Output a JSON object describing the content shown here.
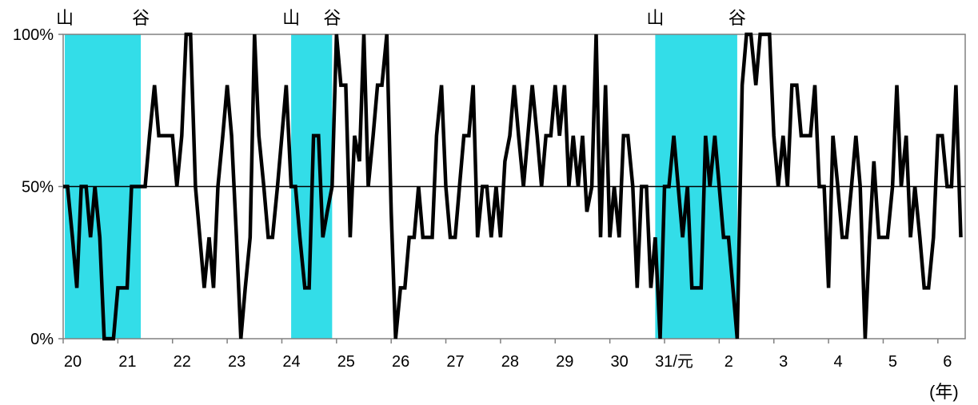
{
  "chart_data": {
    "type": "line",
    "title": "",
    "xlabel": "",
    "ylabel": "",
    "x_unit_label": "(年)",
    "ylim": [
      0,
      100
    ],
    "y_ticks": [
      "0%",
      "50%",
      "100%"
    ],
    "x_ticks": [
      "20",
      "21",
      "22",
      "23",
      "24",
      "25",
      "26",
      "27",
      "28",
      "29",
      "30",
      "31/元",
      "2",
      "3",
      "4",
      "5",
      "6"
    ],
    "grid": "horizontal line at 50%",
    "line_color": "#000000",
    "band_color": "#33dde8",
    "recession_bands": [
      {
        "start": 2008.03,
        "end": 2009.42,
        "start_label": "山",
        "end_label": "谷"
      },
      {
        "start": 2012.17,
        "end": 2012.92,
        "start_label": "山",
        "end_label": "谷"
      },
      {
        "start": 2018.83,
        "end": 2020.33,
        "start_label": "山",
        "end_label": "谷"
      }
    ],
    "series": [
      {
        "values": [
          [
            2008.0,
            50
          ],
          [
            2008.08,
            50
          ],
          [
            2008.17,
            33.3
          ],
          [
            2008.25,
            16.7
          ],
          [
            2008.33,
            50
          ],
          [
            2008.42,
            50
          ],
          [
            2008.5,
            33.3
          ],
          [
            2008.58,
            50
          ],
          [
            2008.67,
            33.3
          ],
          [
            2008.75,
            0
          ],
          [
            2008.83,
            0
          ],
          [
            2008.92,
            0
          ],
          [
            2009.0,
            16.7
          ],
          [
            2009.08,
            16.7
          ],
          [
            2009.17,
            16.7
          ],
          [
            2009.25,
            50
          ],
          [
            2009.33,
            50
          ],
          [
            2009.42,
            50
          ],
          [
            2009.5,
            50
          ],
          [
            2009.58,
            66.7
          ],
          [
            2009.67,
            83.3
          ],
          [
            2009.75,
            66.7
          ],
          [
            2009.83,
            66.7
          ],
          [
            2009.92,
            66.7
          ],
          [
            2010.0,
            66.7
          ],
          [
            2010.08,
            50
          ],
          [
            2010.17,
            66.7
          ],
          [
            2010.25,
            100
          ],
          [
            2010.33,
            100
          ],
          [
            2010.42,
            50
          ],
          [
            2010.5,
            33.3
          ],
          [
            2010.58,
            16.7
          ],
          [
            2010.67,
            33.3
          ],
          [
            2010.75,
            16.7
          ],
          [
            2010.83,
            50
          ],
          [
            2010.92,
            66.7
          ],
          [
            2011.0,
            83.3
          ],
          [
            2011.08,
            66.7
          ],
          [
            2011.17,
            33.3
          ],
          [
            2011.25,
            0
          ],
          [
            2011.33,
            16.7
          ],
          [
            2011.42,
            33.3
          ],
          [
            2011.5,
            100
          ],
          [
            2011.58,
            66.7
          ],
          [
            2011.67,
            50
          ],
          [
            2011.75,
            33.3
          ],
          [
            2011.83,
            33.3
          ],
          [
            2011.92,
            50
          ],
          [
            2012.0,
            66.7
          ],
          [
            2012.08,
            83.3
          ],
          [
            2012.17,
            50
          ],
          [
            2012.25,
            50
          ],
          [
            2012.33,
            33.3
          ],
          [
            2012.42,
            16.7
          ],
          [
            2012.5,
            16.7
          ],
          [
            2012.58,
            66.7
          ],
          [
            2012.67,
            66.7
          ],
          [
            2012.75,
            33.3
          ],
          [
            2012.83,
            41.7
          ],
          [
            2012.92,
            50
          ],
          [
            2013.0,
            100
          ],
          [
            2013.08,
            83.3
          ],
          [
            2013.17,
            83.3
          ],
          [
            2013.25,
            33.3
          ],
          [
            2013.33,
            66.7
          ],
          [
            2013.42,
            58.3
          ],
          [
            2013.5,
            100
          ],
          [
            2013.58,
            50
          ],
          [
            2013.67,
            66.7
          ],
          [
            2013.75,
            83.3
          ],
          [
            2013.83,
            83.3
          ],
          [
            2013.92,
            100
          ],
          [
            2014.0,
            41.7
          ],
          [
            2014.08,
            0
          ],
          [
            2014.17,
            16.7
          ],
          [
            2014.25,
            16.7
          ],
          [
            2014.33,
            33.3
          ],
          [
            2014.42,
            33.3
          ],
          [
            2014.5,
            50
          ],
          [
            2014.58,
            33.3
          ],
          [
            2014.67,
            33.3
          ],
          [
            2014.75,
            33.3
          ],
          [
            2014.83,
            66.7
          ],
          [
            2014.92,
            83.3
          ],
          [
            2015.0,
            50
          ],
          [
            2015.08,
            33.3
          ],
          [
            2015.17,
            33.3
          ],
          [
            2015.25,
            50
          ],
          [
            2015.33,
            66.7
          ],
          [
            2015.42,
            66.7
          ],
          [
            2015.5,
            83.3
          ],
          [
            2015.58,
            33.3
          ],
          [
            2015.67,
            50
          ],
          [
            2015.75,
            50
          ],
          [
            2015.83,
            33.3
          ],
          [
            2015.92,
            50
          ],
          [
            2016.0,
            33.3
          ],
          [
            2016.08,
            58.3
          ],
          [
            2016.17,
            66.7
          ],
          [
            2016.25,
            83.3
          ],
          [
            2016.33,
            66.7
          ],
          [
            2016.42,
            50
          ],
          [
            2016.5,
            66.7
          ],
          [
            2016.58,
            83.3
          ],
          [
            2016.67,
            66.7
          ],
          [
            2016.75,
            50
          ],
          [
            2016.83,
            66.7
          ],
          [
            2016.92,
            66.7
          ],
          [
            2017.0,
            83.3
          ],
          [
            2017.08,
            66.7
          ],
          [
            2017.17,
            83.3
          ],
          [
            2017.25,
            50
          ],
          [
            2017.33,
            66.7
          ],
          [
            2017.42,
            50
          ],
          [
            2017.5,
            66.7
          ],
          [
            2017.58,
            41.7
          ],
          [
            2017.67,
            50
          ],
          [
            2017.75,
            100
          ],
          [
            2017.83,
            33.3
          ],
          [
            2017.92,
            83.3
          ],
          [
            2018.0,
            33.3
          ],
          [
            2018.08,
            50
          ],
          [
            2018.17,
            33.3
          ],
          [
            2018.25,
            66.7
          ],
          [
            2018.33,
            66.7
          ],
          [
            2018.42,
            50
          ],
          [
            2018.5,
            16.7
          ],
          [
            2018.58,
            50
          ],
          [
            2018.67,
            50
          ],
          [
            2018.75,
            16.7
          ],
          [
            2018.83,
            33.3
          ],
          [
            2018.92,
            0
          ],
          [
            2019.0,
            50
          ],
          [
            2019.08,
            50
          ],
          [
            2019.17,
            66.7
          ],
          [
            2019.25,
            50
          ],
          [
            2019.33,
            33.3
          ],
          [
            2019.42,
            50
          ],
          [
            2019.5,
            16.7
          ],
          [
            2019.58,
            16.7
          ],
          [
            2019.67,
            16.7
          ],
          [
            2019.75,
            66.7
          ],
          [
            2019.83,
            50
          ],
          [
            2019.92,
            66.7
          ],
          [
            2020.0,
            50
          ],
          [
            2020.08,
            33.3
          ],
          [
            2020.17,
            33.3
          ],
          [
            2020.25,
            16.7
          ],
          [
            2020.33,
            0
          ],
          [
            2020.42,
            83.3
          ],
          [
            2020.5,
            100
          ],
          [
            2020.58,
            100
          ],
          [
            2020.67,
            83.3
          ],
          [
            2020.75,
            100
          ],
          [
            2020.83,
            100
          ],
          [
            2020.92,
            100
          ],
          [
            2021.0,
            66.7
          ],
          [
            2021.08,
            50
          ],
          [
            2021.17,
            66.7
          ],
          [
            2021.25,
            50
          ],
          [
            2021.33,
            83.3
          ],
          [
            2021.42,
            83.3
          ],
          [
            2021.5,
            66.7
          ],
          [
            2021.58,
            66.7
          ],
          [
            2021.67,
            66.7
          ],
          [
            2021.75,
            83.3
          ],
          [
            2021.83,
            50
          ],
          [
            2021.92,
            50
          ],
          [
            2022.0,
            16.7
          ],
          [
            2022.08,
            66.7
          ],
          [
            2022.17,
            50
          ],
          [
            2022.25,
            33.3
          ],
          [
            2022.33,
            33.3
          ],
          [
            2022.42,
            50
          ],
          [
            2022.5,
            66.7
          ],
          [
            2022.58,
            50
          ],
          [
            2022.67,
            0
          ],
          [
            2022.75,
            33.3
          ],
          [
            2022.83,
            58.3
          ],
          [
            2022.92,
            33.3
          ],
          [
            2023.0,
            33.3
          ],
          [
            2023.08,
            33.3
          ],
          [
            2023.17,
            50
          ],
          [
            2023.25,
            83.3
          ],
          [
            2023.33,
            50
          ],
          [
            2023.42,
            66.7
          ],
          [
            2023.5,
            33.3
          ],
          [
            2023.58,
            50
          ],
          [
            2023.67,
            33.3
          ],
          [
            2023.75,
            16.7
          ],
          [
            2023.83,
            16.7
          ],
          [
            2023.92,
            33.3
          ],
          [
            2024.0,
            66.7
          ],
          [
            2024.08,
            66.7
          ],
          [
            2024.17,
            50
          ],
          [
            2024.25,
            50
          ],
          [
            2024.33,
            83.3
          ],
          [
            2024.42,
            33.3
          ]
        ]
      }
    ]
  }
}
